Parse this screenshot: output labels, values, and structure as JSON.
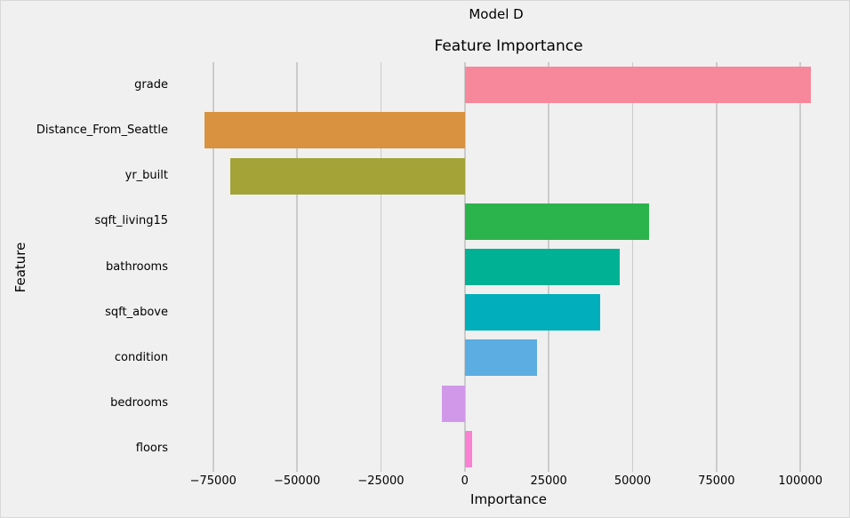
{
  "chart_data": {
    "type": "bar",
    "orientation": "horizontal",
    "suptitle": "Model D",
    "title": "Feature Importance",
    "xlabel": "Importance",
    "ylabel": "Feature",
    "categories": [
      "grade",
      "Distance_From_Seattle",
      "yr_built",
      "sqft_living15",
      "bathrooms",
      "sqft_above",
      "condition",
      "bedrooms",
      "floors"
    ],
    "values": [
      103200,
      -77600,
      -70000,
      54800,
      46100,
      40200,
      21400,
      -6900,
      2100
    ],
    "bar_colors": [
      "#f7879a",
      "#d9923f",
      "#a3a338",
      "#2cb44c",
      "#00b193",
      "#00aebc",
      "#5bade2",
      "#d198e9",
      "#fa80d2"
    ],
    "x_ticks": [
      -75000,
      -50000,
      -25000,
      0,
      25000,
      50000,
      75000,
      100000
    ],
    "x_tick_labels": [
      "−75000",
      "−50000",
      "−25000",
      "0",
      "25000",
      "50000",
      "75000",
      "100000"
    ],
    "xlim": [
      -85800,
      111600
    ],
    "grid": "vertical-only",
    "legend": "none",
    "style": {
      "figure_background": "#f0f0f0",
      "gridline_color": "#cbcbcb",
      "text_color": "#000000"
    }
  }
}
